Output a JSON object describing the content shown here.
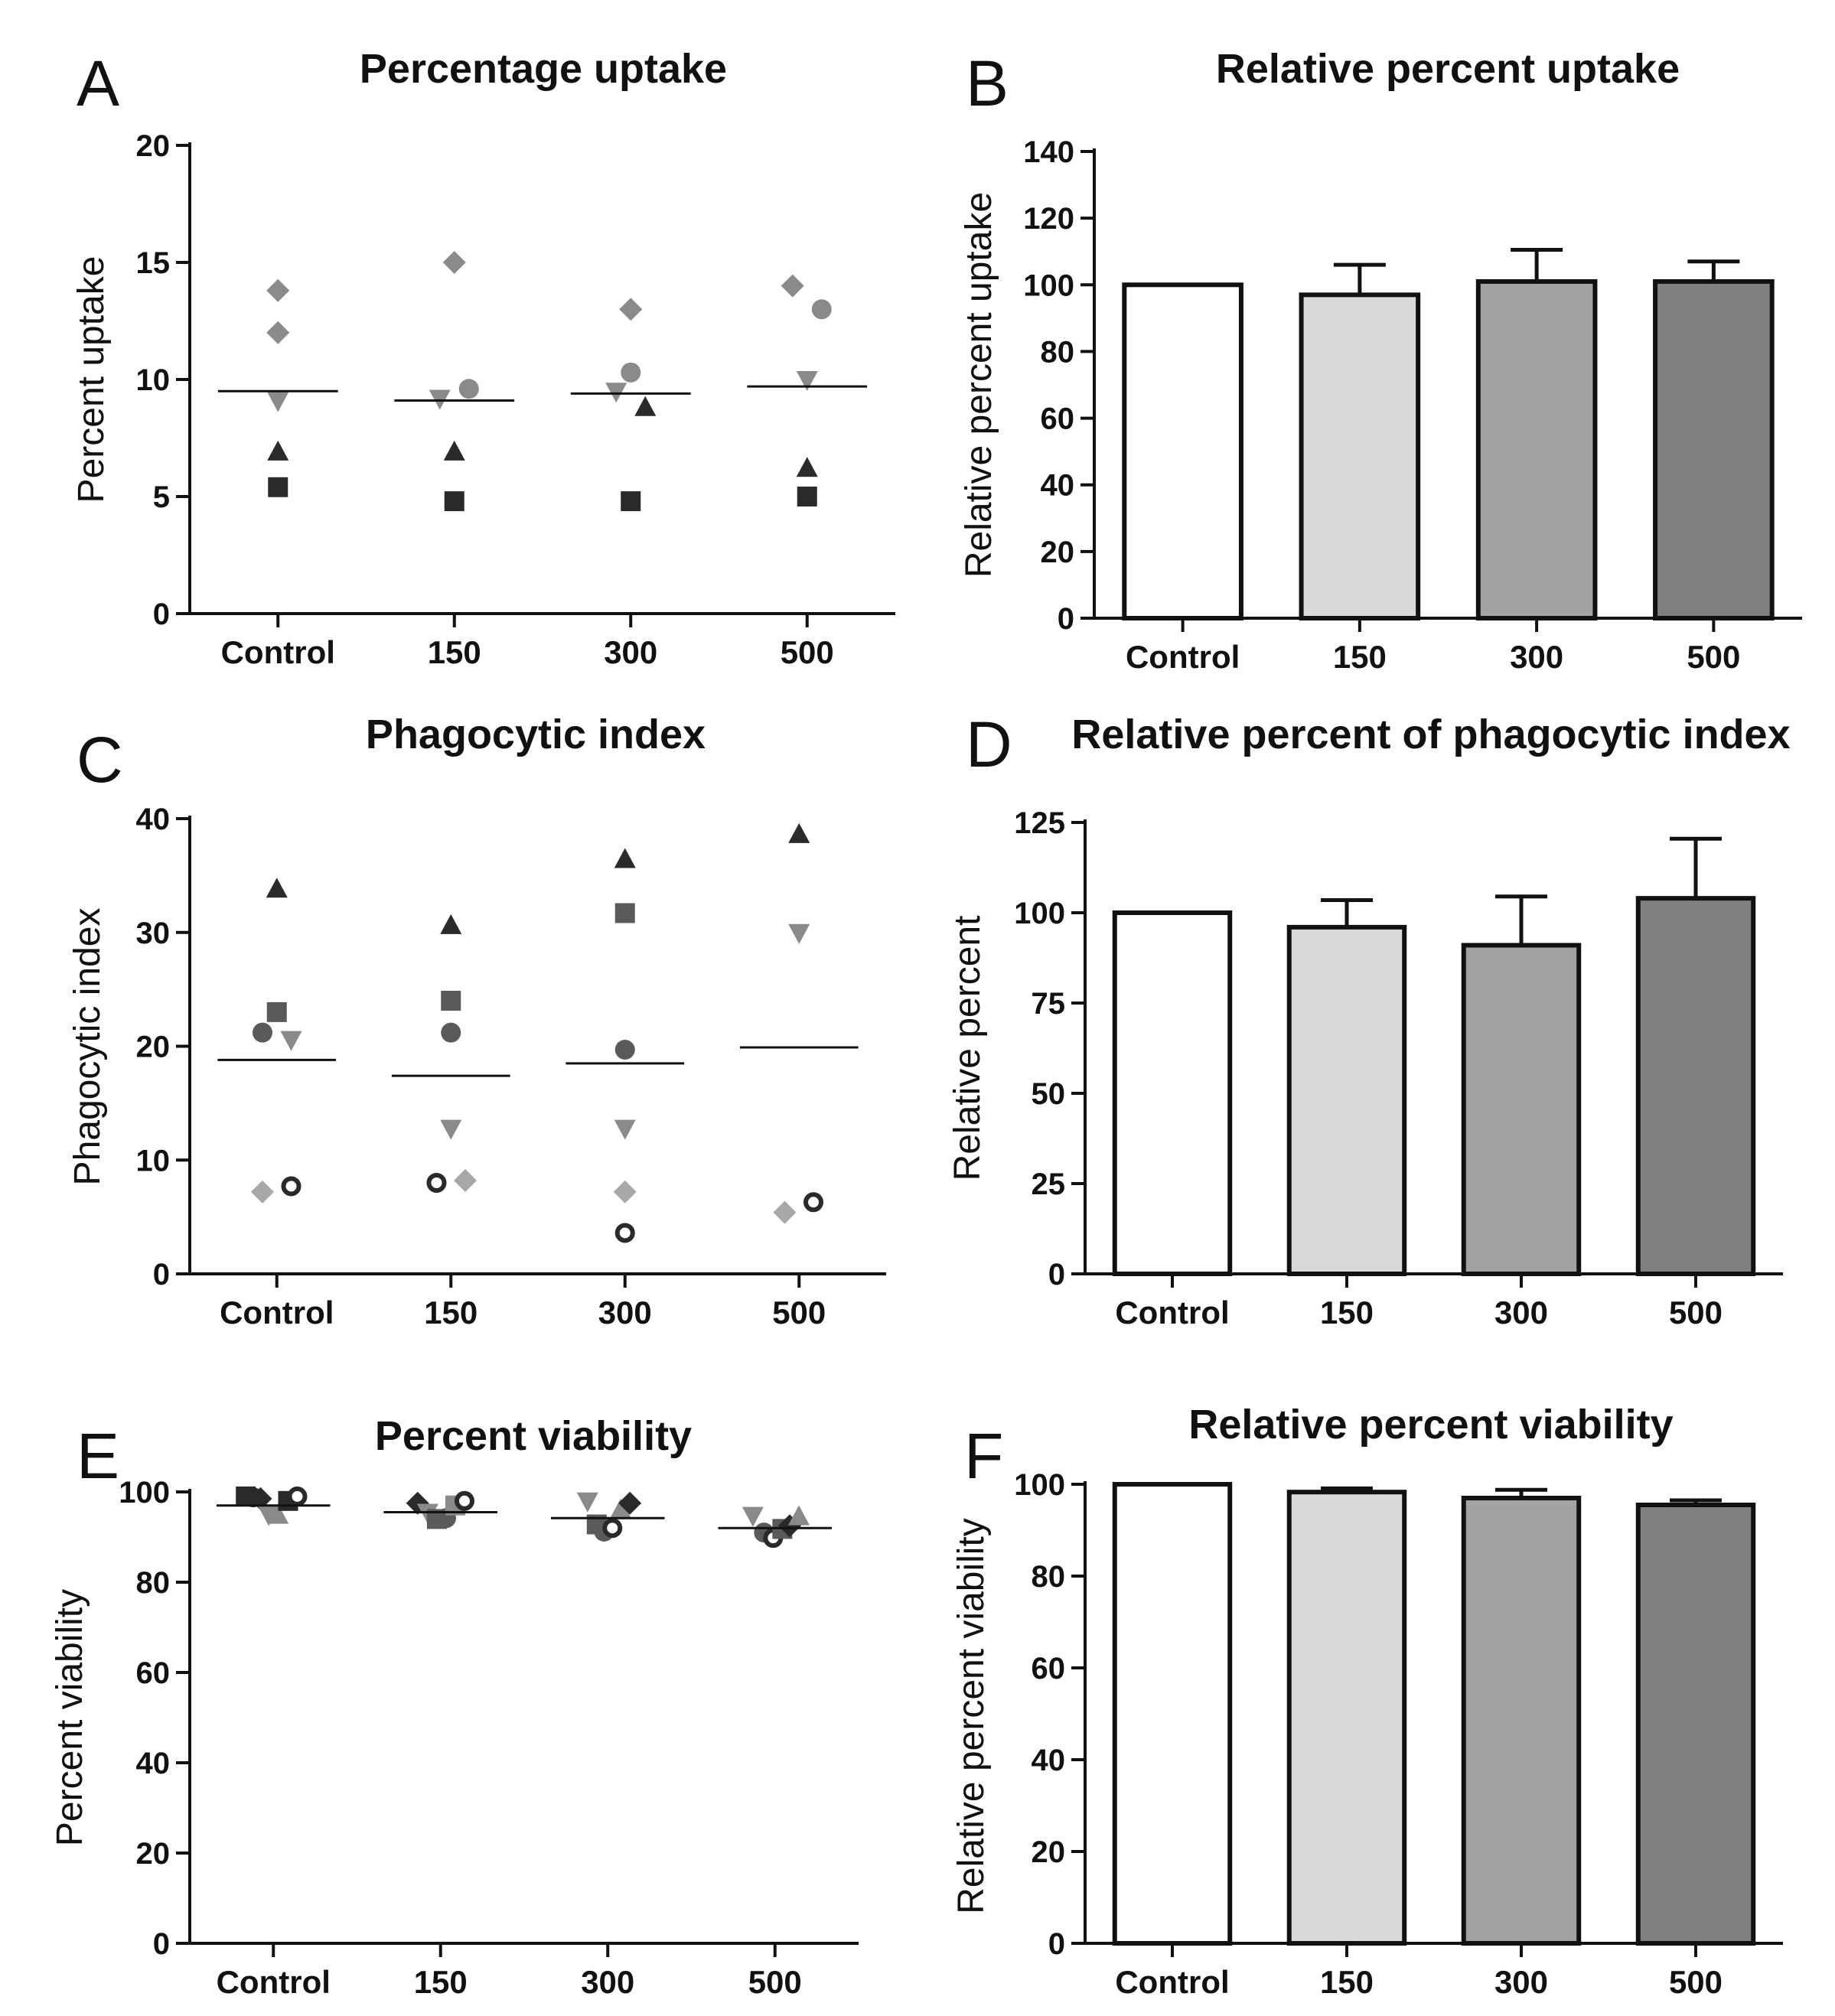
{
  "colors": {
    "dark": "#2a2a2a",
    "mid": "#5a5a5a",
    "gray": "#8a8a8a",
    "light_gray": "#a8a8a8",
    "bar_white": "#ffffff",
    "bar_light": "#d9d9d9",
    "bar_mid": "#a3a3a3",
    "bar_dark": "#808080"
  },
  "chart_data": [
    {
      "id": "A",
      "type": "scatter",
      "title": "Percentage uptake",
      "ylabel": "Percent uptake",
      "xlabel": "",
      "categories": [
        "Control",
        "150",
        "300",
        "500"
      ],
      "ylim": [
        0,
        20
      ],
      "yticks": [
        0,
        5,
        10,
        15,
        20
      ],
      "means": [
        9.5,
        9.1,
        9.4,
        9.7
      ],
      "points": [
        {
          "cat": 0,
          "y": 13.8,
          "marker": "diamond",
          "fill": "gray",
          "offset": 0
        },
        {
          "cat": 0,
          "y": 12.0,
          "marker": "diamond",
          "fill": "gray",
          "offset": 0
        },
        {
          "cat": 0,
          "y": 9.1,
          "marker": "tri_down",
          "fill": "gray",
          "offset": 0
        },
        {
          "cat": 0,
          "y": 6.9,
          "marker": "tri_up",
          "fill": "dark",
          "offset": 0
        },
        {
          "cat": 0,
          "y": 5.4,
          "marker": "square",
          "fill": "dark",
          "offset": 0
        },
        {
          "cat": 1,
          "y": 15.0,
          "marker": "diamond",
          "fill": "gray",
          "offset": 0
        },
        {
          "cat": 1,
          "y": 9.6,
          "marker": "circle",
          "fill": "gray",
          "offset": 0.15
        },
        {
          "cat": 1,
          "y": 9.2,
          "marker": "tri_down",
          "fill": "gray",
          "offset": -0.15
        },
        {
          "cat": 1,
          "y": 6.9,
          "marker": "tri_up",
          "fill": "dark",
          "offset": 0
        },
        {
          "cat": 1,
          "y": 4.8,
          "marker": "square",
          "fill": "dark",
          "offset": 0
        },
        {
          "cat": 2,
          "y": 13.0,
          "marker": "diamond",
          "fill": "gray",
          "offset": 0
        },
        {
          "cat": 2,
          "y": 10.3,
          "marker": "circle",
          "fill": "gray",
          "offset": 0
        },
        {
          "cat": 2,
          "y": 9.5,
          "marker": "tri_down",
          "fill": "gray",
          "offset": -0.15
        },
        {
          "cat": 2,
          "y": 8.8,
          "marker": "tri_up",
          "fill": "dark",
          "offset": 0.15
        },
        {
          "cat": 2,
          "y": 4.8,
          "marker": "square",
          "fill": "dark",
          "offset": 0
        },
        {
          "cat": 3,
          "y": 14.0,
          "marker": "diamond",
          "fill": "gray",
          "offset": -0.15
        },
        {
          "cat": 3,
          "y": 13.0,
          "marker": "circle",
          "fill": "gray",
          "offset": 0.15
        },
        {
          "cat": 3,
          "y": 10.0,
          "marker": "tri_down",
          "fill": "gray",
          "offset": 0
        },
        {
          "cat": 3,
          "y": 6.2,
          "marker": "tri_up",
          "fill": "dark",
          "offset": 0
        },
        {
          "cat": 3,
          "y": 5.0,
          "marker": "square",
          "fill": "dark",
          "offset": 0
        }
      ]
    },
    {
      "id": "B",
      "type": "bar",
      "title": "Relative percent uptake",
      "ylabel": "Relative percent uptake",
      "xlabel": "",
      "categories": [
        "Control",
        "150",
        "300",
        "500"
      ],
      "ylim": [
        0,
        140
      ],
      "yticks": [
        0,
        20,
        40,
        60,
        80,
        100,
        120,
        140
      ],
      "values": [
        100,
        97,
        101,
        101
      ],
      "errors": [
        0,
        9,
        9.5,
        6
      ],
      "bar_colors": [
        "bar_white",
        "bar_light",
        "bar_mid",
        "bar_dark"
      ]
    },
    {
      "id": "C",
      "type": "scatter",
      "title": "Phagocytic index",
      "ylabel": "Phagocytic index",
      "xlabel": "",
      "categories": [
        "Control",
        "150",
        "300",
        "500"
      ],
      "ylim": [
        0,
        40
      ],
      "yticks": [
        0,
        10,
        20,
        30,
        40
      ],
      "means": [
        18.8,
        17.4,
        18.5,
        19.9
      ],
      "points": [
        {
          "cat": 0,
          "y": 33.8,
          "marker": "tri_up",
          "fill": "dark",
          "offset": 0
        },
        {
          "cat": 0,
          "y": 23.0,
          "marker": "square",
          "fill": "mid",
          "offset": 0
        },
        {
          "cat": 0,
          "y": 21.2,
          "marker": "circle",
          "fill": "mid",
          "offset": -0.15
        },
        {
          "cat": 0,
          "y": 20.6,
          "marker": "tri_down",
          "fill": "gray",
          "offset": 0.15
        },
        {
          "cat": 0,
          "y": 7.2,
          "marker": "diamond",
          "fill": "light_gray",
          "offset": -0.15
        },
        {
          "cat": 0,
          "y": 7.7,
          "marker": "open_circle",
          "fill": "dark",
          "offset": 0.15
        },
        {
          "cat": 1,
          "y": 30.6,
          "marker": "tri_up",
          "fill": "dark",
          "offset": 0
        },
        {
          "cat": 1,
          "y": 24.0,
          "marker": "square",
          "fill": "mid",
          "offset": 0
        },
        {
          "cat": 1,
          "y": 21.2,
          "marker": "circle",
          "fill": "mid",
          "offset": 0
        },
        {
          "cat": 1,
          "y": 12.8,
          "marker": "tri_down",
          "fill": "gray",
          "offset": 0
        },
        {
          "cat": 1,
          "y": 8.0,
          "marker": "open_circle",
          "fill": "dark",
          "offset": -0.15
        },
        {
          "cat": 1,
          "y": 8.2,
          "marker": "diamond",
          "fill": "light_gray",
          "offset": 0.15
        },
        {
          "cat": 2,
          "y": 36.4,
          "marker": "tri_up",
          "fill": "dark",
          "offset": 0
        },
        {
          "cat": 2,
          "y": 31.7,
          "marker": "square",
          "fill": "mid",
          "offset": 0
        },
        {
          "cat": 2,
          "y": 19.7,
          "marker": "circle",
          "fill": "mid",
          "offset": 0
        },
        {
          "cat": 2,
          "y": 12.8,
          "marker": "tri_down",
          "fill": "gray",
          "offset": 0
        },
        {
          "cat": 2,
          "y": 7.2,
          "marker": "diamond",
          "fill": "light_gray",
          "offset": 0
        },
        {
          "cat": 2,
          "y": 3.6,
          "marker": "open_circle",
          "fill": "dark",
          "offset": 0
        },
        {
          "cat": 3,
          "y": 38.6,
          "marker": "tri_up",
          "fill": "dark",
          "offset": 0
        },
        {
          "cat": 3,
          "y": 30.0,
          "marker": "tri_down",
          "fill": "gray",
          "offset": 0
        },
        {
          "cat": 3,
          "y": 5.4,
          "marker": "diamond",
          "fill": "light_gray",
          "offset": -0.15
        },
        {
          "cat": 3,
          "y": 6.3,
          "marker": "open_circle",
          "fill": "dark",
          "offset": 0.15
        }
      ]
    },
    {
      "id": "D",
      "type": "bar",
      "title": "Relative percent of phagocytic index",
      "ylabel": "Relative percent",
      "xlabel": "",
      "categories": [
        "Control",
        "150",
        "300",
        "500"
      ],
      "ylim": [
        0,
        125
      ],
      "yticks": [
        0,
        25,
        50,
        75,
        100,
        125
      ],
      "values": [
        100,
        96,
        91,
        104
      ],
      "errors": [
        0,
        7.5,
        13.5,
        16.5
      ],
      "bar_colors": [
        "bar_white",
        "bar_light",
        "bar_mid",
        "bar_dark"
      ]
    },
    {
      "id": "E",
      "type": "scatter",
      "title": "Percent viability",
      "ylabel": "Percent viability",
      "xlabel": "",
      "categories": [
        "Control",
        "150",
        "300",
        "500"
      ],
      "ylim": [
        0,
        100
      ],
      "yticks": [
        0,
        20,
        40,
        60,
        80,
        100
      ],
      "means": [
        97.0,
        95.5,
        94.2,
        92.0
      ],
      "points": [
        {
          "cat": 0,
          "y": 99.0,
          "marker": "square",
          "fill": "dark",
          "offset": -0.3
        },
        {
          "cat": 0,
          "y": 98.8,
          "marker": "circle",
          "fill": "dark",
          "offset": -0.22
        },
        {
          "cat": 0,
          "y": 98.5,
          "marker": "diamond",
          "fill": "dark",
          "offset": -0.14
        },
        {
          "cat": 0,
          "y": 95.0,
          "marker": "tri_down",
          "fill": "gray",
          "offset": -0.05
        },
        {
          "cat": 0,
          "y": 94.8,
          "marker": "tri_up",
          "fill": "gray",
          "offset": 0.05
        },
        {
          "cat": 0,
          "y": 98.0,
          "marker": "square",
          "fill": "dark",
          "offset": 0.16
        },
        {
          "cat": 0,
          "y": 99.0,
          "marker": "open_circle",
          "fill": "dark",
          "offset": 0.26
        },
        {
          "cat": 1,
          "y": 97.5,
          "marker": "diamond",
          "fill": "dark",
          "offset": -0.25
        },
        {
          "cat": 1,
          "y": 95.5,
          "marker": "tri_down",
          "fill": "gray",
          "offset": -0.14
        },
        {
          "cat": 1,
          "y": 94.0,
          "marker": "square",
          "fill": "mid",
          "offset": -0.04
        },
        {
          "cat": 1,
          "y": 94.2,
          "marker": "circle",
          "fill": "mid",
          "offset": 0.06
        },
        {
          "cat": 1,
          "y": 97.0,
          "marker": "square",
          "fill": "gray",
          "offset": 0.16
        },
        {
          "cat": 1,
          "y": 98.0,
          "marker": "open_circle",
          "fill": "dark",
          "offset": 0.26
        },
        {
          "cat": 2,
          "y": 98.0,
          "marker": "tri_down",
          "fill": "gray",
          "offset": -0.22
        },
        {
          "cat": 2,
          "y": 92.8,
          "marker": "square",
          "fill": "mid",
          "offset": -0.12
        },
        {
          "cat": 2,
          "y": 91.2,
          "marker": "circle",
          "fill": "mid",
          "offset": -0.04
        },
        {
          "cat": 2,
          "y": 92.0,
          "marker": "open_circle",
          "fill": "dark",
          "offset": 0.05
        },
        {
          "cat": 2,
          "y": 96.0,
          "marker": "tri_up",
          "fill": "gray",
          "offset": 0.14
        },
        {
          "cat": 2,
          "y": 97.5,
          "marker": "diamond",
          "fill": "dark",
          "offset": 0.24
        },
        {
          "cat": 3,
          "y": 94.8,
          "marker": "tri_down",
          "fill": "gray",
          "offset": -0.24
        },
        {
          "cat": 3,
          "y": 91.0,
          "marker": "circle",
          "fill": "mid",
          "offset": -0.12
        },
        {
          "cat": 3,
          "y": 89.8,
          "marker": "open_circle",
          "fill": "dark",
          "offset": -0.02
        },
        {
          "cat": 3,
          "y": 91.8,
          "marker": "square",
          "fill": "mid",
          "offset": 0.08
        },
        {
          "cat": 3,
          "y": 92.5,
          "marker": "diamond",
          "fill": "dark",
          "offset": 0.16
        },
        {
          "cat": 3,
          "y": 94.5,
          "marker": "tri_up",
          "fill": "gray",
          "offset": 0.26
        }
      ]
    },
    {
      "id": "F",
      "type": "bar",
      "title": "Relative percent viability",
      "ylabel": "Relative percent viability",
      "xlabel": "",
      "categories": [
        "Control",
        "150",
        "300",
        "500"
      ],
      "ylim": [
        0,
        100
      ],
      "yticks": [
        0,
        20,
        40,
        60,
        80,
        100
      ],
      "values": [
        100,
        98.3,
        97.0,
        95.5
      ],
      "errors": [
        0,
        0.8,
        1.8,
        1.0
      ],
      "bar_colors": [
        "bar_white",
        "bar_light",
        "bar_mid",
        "bar_dark"
      ]
    }
  ]
}
